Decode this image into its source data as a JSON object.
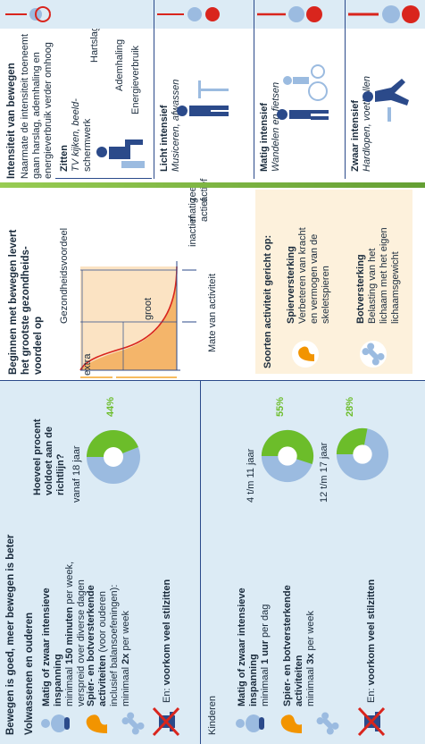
{
  "left": {
    "title": "Bewegen is goed, meer bewegen is beter",
    "adults": {
      "heading": "Volwassenen en ouderen",
      "item1": {
        "bold": "Matig of zwaar intensieve inspanning",
        "pre": "minimaal ",
        "strong": "150 minuten",
        "post": " per week,",
        "line2": "verspreid over diverse dagen"
      },
      "item2": {
        "bold1": "Spier- en botversterkende",
        "bold2": "activiteiten",
        "rest": " (voor ouderen",
        "line2": "inclusief balansoefeningen):",
        "pre": "minimaal ",
        "strong": "2x",
        "post": " per week"
      },
      "item3": {
        "pre": "En: ",
        "strong": "voorkom veel stilzitten"
      }
    },
    "kids": {
      "heading": "Kinderen",
      "item1": {
        "bold": "Matig of zwaar intensieve inspanning",
        "pre": "minimaal ",
        "strong": "1 uur",
        "post": " per dag"
      },
      "item2": {
        "bold1": "Spier- en botversterkende",
        "bold2": "activiteiten",
        "pre": "minimaal ",
        "strong": "3x",
        "post": " per week"
      },
      "item3": {
        "pre": "En: ",
        "strong": "voorkom veel stilzitten"
      }
    },
    "question": {
      "line1": "Hoeveel procent",
      "line2": "voldoet aan de",
      "line3": "richtlijn?"
    },
    "pies": [
      {
        "label": "vanaf 18 jaar",
        "pct_label": "44%",
        "fraction": 0.44
      },
      {
        "label": "4 t/m 11 jaar",
        "pct_label": "55%",
        "fraction": 0.55
      },
      {
        "label": "12 t/m 17 jaar",
        "pct_label": "28%",
        "fraction": 0.28
      }
    ]
  },
  "middle": {
    "title1": "Beginnen met bewegen levert",
    "title2": "het grootste gezondheids-",
    "title3": "voordeel op",
    "ylabel": "Gezondheidsvoordeel",
    "extra": "extra",
    "groot": "groot",
    "xaxis": {
      "inactief": "inactief",
      "matig": "matig",
      "actief": "actief",
      "zeer": "zeer",
      "actief2": "actief",
      "xlabel": "Mate van activiteit"
    },
    "types": {
      "title": "Soorten activiteit gericht op:",
      "spier": {
        "title": "Spierversterking",
        "l1": "Verbeteren van kracht",
        "l2": "en vermogen van de",
        "l3": "skeletspieren"
      },
      "bot": {
        "title": "Botversterking",
        "l1": "Belasting van het",
        "l2": "lichaam met het eigen",
        "l3": "lichaamsgewicht"
      }
    }
  },
  "right": {
    "title": "Intensiteit van bewegen",
    "desc1": "Naarmate de intensiteit toeneemt",
    "desc2": "gaan harslag, ademhaling en",
    "desc3": "energieverbruik verder omhoog",
    "labels": {
      "hartslag": "Hartslag",
      "adem": "Ademhaling",
      "energie": "Energieverbruik"
    },
    "levels": [
      {
        "title": "Zitten",
        "sub1": "TV kijken, beeld-",
        "sub2": "schermwerk"
      },
      {
        "title": "Licht intensief",
        "sub1": "Musiceren, afwassen",
        "sub2": ""
      },
      {
        "title": "Matig intensief",
        "sub1": "Wandelen en fietsen",
        "sub2": ""
      },
      {
        "title": "Zwaar intensief",
        "sub1": "Hardlopen, voetballen",
        "sub2": ""
      }
    ]
  },
  "colors": {
    "accent": "#2b4a8a",
    "green": "#6cbd2a",
    "pale_blue": "#9bbbe0",
    "orange": "#f29400",
    "red": "#d9251d",
    "bg_left": "#dcebf5"
  }
}
